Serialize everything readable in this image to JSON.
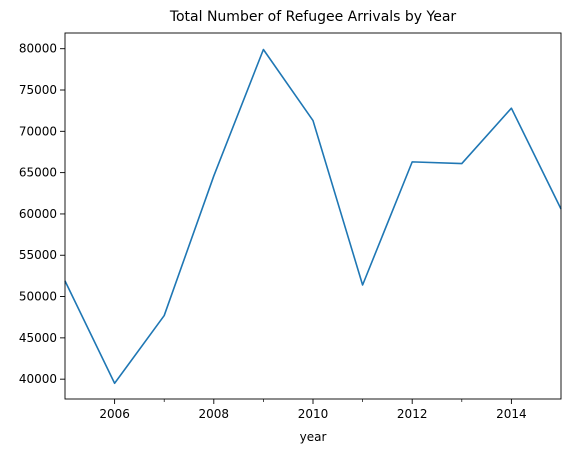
{
  "chart_data": {
    "type": "line",
    "title": "Total Number of Refugee Arrivals by Year",
    "xlabel": "year",
    "ylabel": "",
    "x": [
      2005,
      2006,
      2007,
      2008,
      2009,
      2010,
      2011,
      2012,
      2013,
      2014,
      2015
    ],
    "series": [
      {
        "values": [
          51900,
          39500,
          47700,
          64600,
          79900,
          71300,
          51400,
          66300,
          66100,
          72800,
          60600
        ]
      }
    ],
    "xlim": [
      2005,
      2015
    ],
    "ylim": [
      37600,
      81900
    ],
    "x_major_ticks": [
      2006,
      2008,
      2010,
      2012,
      2014
    ],
    "x_minor_ticks": [
      2007,
      2009,
      2011,
      2013
    ],
    "y_ticks": [
      40000,
      45000,
      50000,
      55000,
      60000,
      65000,
      70000,
      75000,
      80000
    ],
    "grid": false,
    "line_color": "#1f77b4"
  }
}
